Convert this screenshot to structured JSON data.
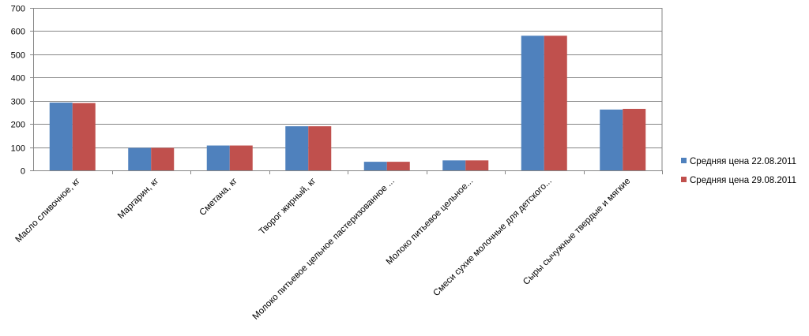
{
  "chart_data": {
    "type": "bar",
    "title": "",
    "xlabel": "",
    "ylabel": "",
    "ylim": [
      0,
      700
    ],
    "yticks": [
      0,
      100,
      200,
      300,
      400,
      500,
      600,
      700
    ],
    "grid": true,
    "legend_position": "right",
    "categories": [
      "Масло сливочное, кг",
      "Маргарин, кг",
      "Сметана, кг",
      "Творог жирный, кг",
      "Молоко питьевое цельное пастеризованное ...",
      "Молоко питьевое цельное...",
      "Смеси сухие молочные для детского...",
      "Сыры сычужные твердые и мягкие"
    ],
    "series": [
      {
        "name": "Средняя цена 22.08.2011",
        "color": "#4f81bd",
        "values": [
          292,
          97,
          107,
          190,
          37,
          43,
          580,
          262
        ]
      },
      {
        "name": "Средняя цена 29.08.2011",
        "color": "#c0504d",
        "values": [
          290,
          97,
          107,
          190,
          37,
          43,
          580,
          265
        ]
      }
    ]
  }
}
